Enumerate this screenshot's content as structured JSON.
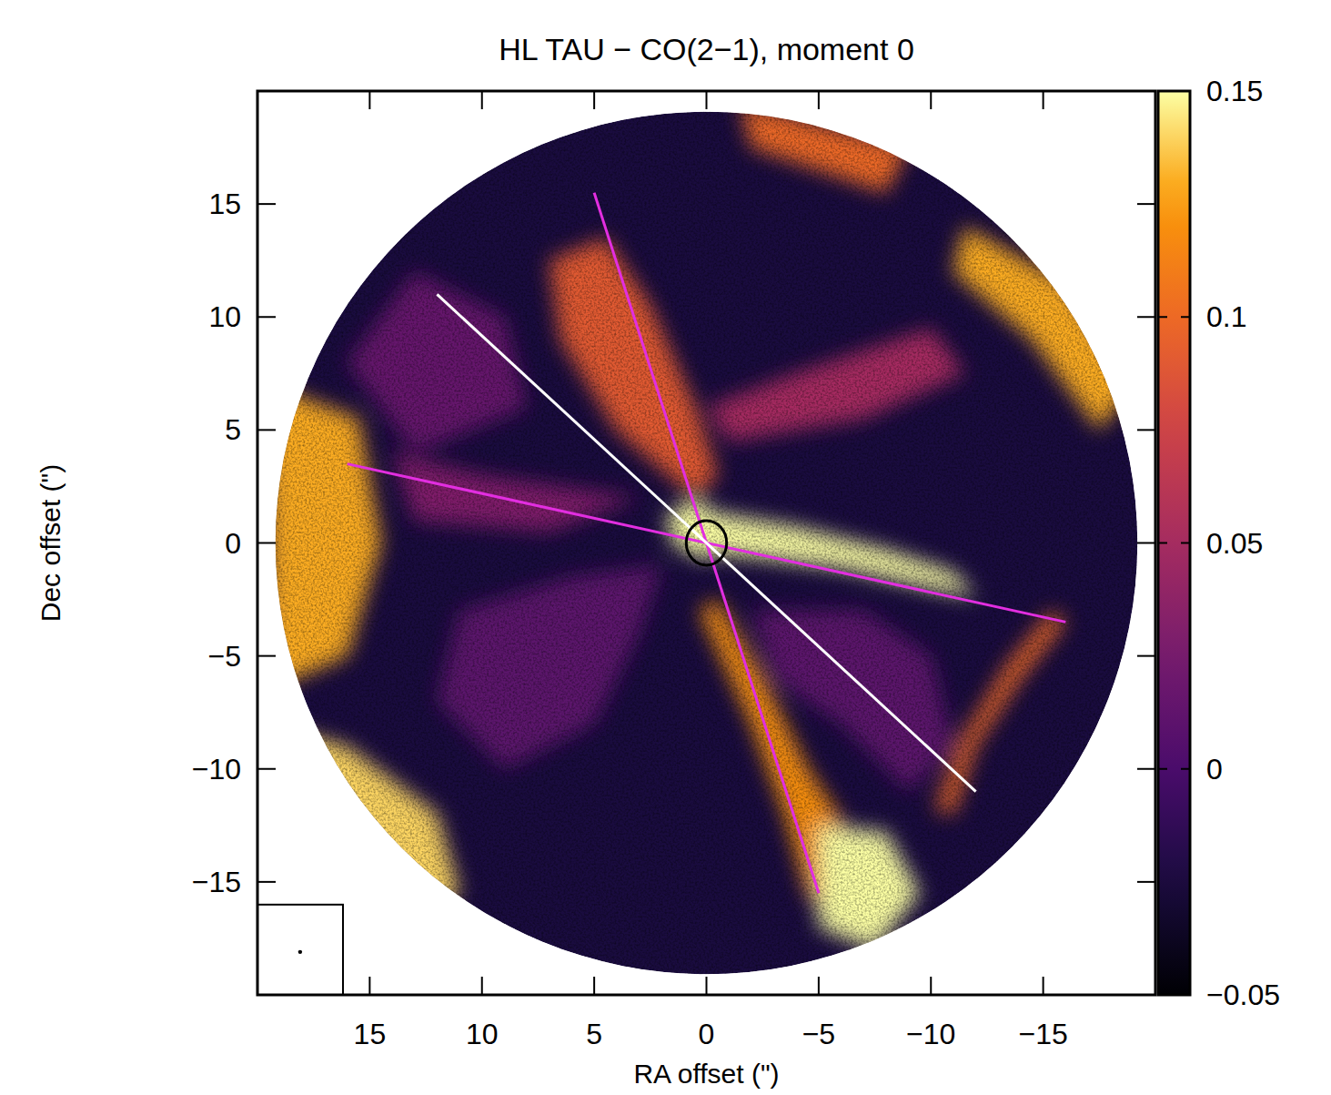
{
  "chart_data": {
    "type": "image",
    "title": "HL TAU − CO(2−1), moment 0",
    "x_label": "RA offset (\")",
    "y_label": "Dec offset (\")",
    "xlim": [
      20,
      -20
    ],
    "ylim": [
      -20,
      20
    ],
    "xticks": [
      15,
      10,
      5,
      0,
      {
        "value": -5,
        "label": "−5"
      },
      {
        "value": -10,
        "label": "−10"
      },
      {
        "value": -15,
        "label": "−15"
      }
    ],
    "yticks": [
      {
        "value": -15,
        "label": "−15"
      },
      {
        "value": -10,
        "label": "−10"
      },
      {
        "value": -5,
        "label": "−5"
      },
      0,
      5,
      10,
      15
    ],
    "field_radius": 19.2,
    "background_level": -0.025,
    "colorbar": {
      "range": [
        -0.05,
        0.15
      ],
      "ticks": [
        0.15,
        0.1,
        0.05,
        0,
        {
          "value": -0.05,
          "label": "−0.05"
        }
      ]
    },
    "regions": [
      {
        "level": 0.01,
        "points": [
          [
            2,
            -1
          ],
          [
            6,
            -1.5
          ],
          [
            11,
            -3
          ],
          [
            12,
            -7
          ],
          [
            9,
            -10
          ],
          [
            5,
            -8
          ],
          [
            3,
            -4
          ]
        ]
      },
      {
        "level": 0.01,
        "points": [
          [
            -2,
            -3
          ],
          [
            -7,
            -3
          ],
          [
            -10,
            -5
          ],
          [
            -11,
            -9
          ],
          [
            -9,
            -11
          ],
          [
            -6,
            -8
          ],
          [
            -3,
            -6
          ]
        ]
      },
      {
        "level": 0.015,
        "points": [
          [
            13,
            4
          ],
          [
            16,
            8
          ],
          [
            13,
            12
          ],
          [
            9,
            10
          ],
          [
            8,
            6
          ]
        ]
      },
      {
        "level": 0.05,
        "points": [
          [
            0,
            6
          ],
          [
            -4,
            7.5
          ],
          [
            -10,
            9.5
          ],
          [
            -11.5,
            7.5
          ],
          [
            -7,
            5.5
          ],
          [
            -1,
            4.5
          ]
        ]
      },
      {
        "level": 0.09,
        "points": [
          [
            0.5,
            2
          ],
          [
            4,
            5
          ],
          [
            6.5,
            9
          ],
          [
            7,
            12.5
          ],
          [
            4.5,
            13.5
          ],
          [
            2.5,
            10.5
          ],
          [
            0.5,
            6
          ],
          [
            -0.5,
            3
          ]
        ]
      },
      {
        "level": 0.03,
        "points": [
          [
            3,
            2
          ],
          [
            10,
            3
          ],
          [
            14,
            4
          ],
          [
            13,
            1
          ],
          [
            7,
            0.5
          ]
        ]
      },
      {
        "level": 0.13,
        "points": [
          [
            15.5,
            5.5
          ],
          [
            19.5,
            7
          ],
          [
            19.5,
            -6.5
          ],
          [
            16,
            -5
          ],
          [
            14.5,
            0
          ]
        ]
      },
      {
        "level": 0.14,
        "points": [
          [
            12,
            -12
          ],
          [
            16,
            -9
          ],
          [
            19.5,
            -8
          ],
          [
            18.5,
            -15
          ],
          [
            14,
            -17.5
          ],
          [
            11,
            -15.5
          ]
        ]
      },
      {
        "level": 0.1,
        "points": [
          [
            -1.5,
            19.5
          ],
          [
            -9,
            17.5
          ],
          [
            -8,
            15.5
          ],
          [
            -2,
            17.5
          ]
        ]
      },
      {
        "level": 0.13,
        "points": [
          [
            -11.5,
            14
          ],
          [
            -16,
            11.5
          ],
          [
            -19,
            7
          ],
          [
            -17.5,
            5
          ],
          [
            -14.5,
            9
          ],
          [
            -11,
            12
          ]
        ]
      },
      {
        "level": 0.1,
        "points": [
          [
            -16,
            -3.5
          ],
          [
            -14,
            -6
          ],
          [
            -12,
            -9
          ],
          [
            -11,
            -12
          ],
          [
            -10.2,
            -11.8
          ],
          [
            -11.3,
            -8.8
          ],
          [
            -13.4,
            -5.4
          ],
          [
            -15.4,
            -3
          ]
        ]
      },
      {
        "level": 0.12,
        "points": [
          [
            -0.5,
            -2.5
          ],
          [
            -2.5,
            -6
          ],
          [
            -4.5,
            -10
          ],
          [
            -6.5,
            -13
          ],
          [
            -8,
            -16
          ],
          [
            -6,
            -17.5
          ],
          [
            -4.5,
            -15.5
          ],
          [
            -3.5,
            -12
          ],
          [
            -2,
            -8
          ],
          [
            0.3,
            -3
          ]
        ]
      },
      {
        "level": 0.15,
        "points": [
          [
            -5,
            -12.5
          ],
          [
            -8,
            -12.8
          ],
          [
            -9.5,
            -15.5
          ],
          [
            -7.5,
            -18
          ],
          [
            -5,
            -17
          ]
        ]
      },
      {
        "level": 0.15,
        "points": [
          [
            1.2,
            1
          ],
          [
            0,
            1.4
          ],
          [
            -4,
            0.7
          ],
          [
            -8,
            -0.3
          ],
          [
            -11,
            -1.3
          ],
          [
            -12,
            -2.4
          ],
          [
            -10,
            -2
          ],
          [
            -6,
            -1.1
          ],
          [
            -2,
            -0.6
          ],
          [
            1,
            -0.4
          ]
        ]
      },
      {
        "level": 0.15,
        "points": [
          [
            1.8,
            1.2
          ],
          [
            0.5,
            2
          ],
          [
            -0.8,
            1
          ],
          [
            0,
            -0.8
          ],
          [
            1.5,
            0
          ]
        ]
      }
    ],
    "lines": [
      {
        "color": "#e22ee0",
        "x": [
          5,
          -5
        ],
        "y": [
          15.5,
          -15.5
        ]
      },
      {
        "color": "#e22ee0",
        "x": [
          16,
          -16
        ],
        "y": [
          3.5,
          -3.5
        ]
      },
      {
        "color": "#ffffff",
        "x": [
          12,
          -12
        ],
        "y": [
          11,
          -11
        ]
      }
    ],
    "source_marker": {
      "x": 0,
      "y": 0,
      "radius": 0.9
    },
    "beam": {
      "x": 18.1,
      "y": -18.1
    }
  }
}
